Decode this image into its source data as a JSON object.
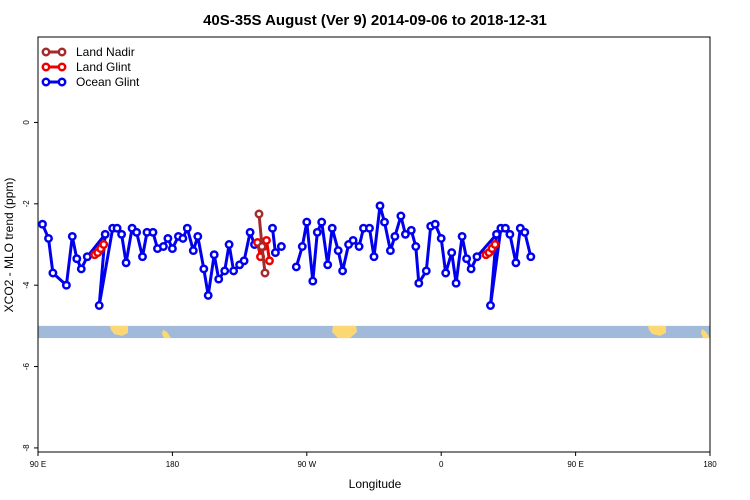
{
  "chart_data": {
    "type": "line",
    "title": "40S-35S August (Ver 9)   2014-09-06 to 2018-12-31",
    "xlabel": "Longitude",
    "ylabel": "XCO2 - MLO trend (ppm)",
    "xlim": [
      90,
      540
    ],
    "ylim": [
      -8.1,
      2.1
    ],
    "x_ticks": [
      {
        "value": 90,
        "label": "90 E"
      },
      {
        "value": 180,
        "label": "180"
      },
      {
        "value": 270,
        "label": "90 W"
      },
      {
        "value": 360,
        "label": "0"
      },
      {
        "value": 450,
        "label": "90 E"
      },
      {
        "value": 540,
        "label": "180"
      }
    ],
    "y_ticks": [
      {
        "value": 0,
        "label": "0"
      },
      {
        "value": -2,
        "label": "-2"
      },
      {
        "value": -4,
        "label": "-4"
      },
      {
        "value": -6,
        "label": "-6"
      },
      {
        "value": -8,
        "label": "-8"
      }
    ],
    "legend_position": "top-left",
    "series": [
      {
        "name": "Ocean Glint",
        "color": "#0000ee",
        "segments": [
          [
            [
              93,
              -2.5
            ],
            [
              97,
              -2.85
            ],
            [
              100,
              -3.7
            ],
            [
              109,
              -4.0
            ],
            [
              113,
              -2.8
            ],
            [
              116,
              -3.35
            ],
            [
              119,
              -3.6
            ],
            [
              123,
              -3.3
            ],
            [
              135,
              -2.75
            ],
            [
              131,
              -4.5
            ],
            [
              140,
              -2.6
            ],
            [
              143,
              -2.6
            ],
            [
              146,
              -2.75
            ],
            [
              149,
              -3.45
            ],
            [
              153,
              -2.6
            ],
            [
              156,
              -2.7
            ],
            [
              160,
              -3.3
            ],
            [
              163,
              -2.7
            ],
            [
              167,
              -2.7
            ],
            [
              170,
              -3.1
            ],
            [
              174,
              -3.05
            ],
            [
              177,
              -2.85
            ],
            [
              180,
              -3.1
            ],
            [
              184,
              -2.8
            ],
            [
              187,
              -2.85
            ],
            [
              190,
              -2.6
            ],
            [
              194,
              -3.15
            ],
            [
              197,
              -2.8
            ],
            [
              201,
              -3.6
            ],
            [
              204,
              -4.25
            ],
            [
              208,
              -3.25
            ],
            [
              211,
              -3.85
            ],
            [
              215,
              -3.65
            ],
            [
              218,
              -3.0
            ],
            [
              221,
              -3.65
            ],
            [
              225,
              -3.5
            ],
            [
              228,
              -3.4
            ],
            [
              232,
              -2.7
            ],
            [
              235,
              -3.0
            ]
          ],
          [
            [
              247,
              -2.6
            ],
            [
              249,
              -3.2
            ],
            [
              253,
              -3.05
            ]
          ],
          [
            [
              263,
              -3.55
            ],
            [
              267,
              -3.05
            ],
            [
              270,
              -2.45
            ],
            [
              274,
              -3.9
            ],
            [
              277,
              -2.7
            ],
            [
              280,
              -2.45
            ],
            [
              284,
              -3.5
            ],
            [
              287,
              -2.6
            ],
            [
              291,
              -3.15
            ],
            [
              294,
              -3.65
            ],
            [
              298,
              -3.0
            ],
            [
              301,
              -2.9
            ],
            [
              305,
              -3.05
            ],
            [
              308,
              -2.6
            ],
            [
              312,
              -2.6
            ],
            [
              315,
              -3.3
            ],
            [
              319,
              -2.05
            ],
            [
              322,
              -2.45
            ],
            [
              326,
              -3.15
            ],
            [
              329,
              -2.8
            ],
            [
              333,
              -2.3
            ],
            [
              336,
              -2.75
            ],
            [
              340,
              -2.65
            ],
            [
              343,
              -3.05
            ],
            [
              345,
              -3.95
            ],
            [
              350,
              -3.65
            ],
            [
              353,
              -2.55
            ],
            [
              356,
              -2.5
            ],
            [
              360,
              -2.85
            ],
            [
              363,
              -3.7
            ],
            [
              367,
              -3.2
            ],
            [
              370,
              -3.95
            ],
            [
              374,
              -2.8
            ],
            [
              377,
              -3.35
            ],
            [
              380,
              -3.6
            ],
            [
              384,
              -3.3
            ],
            [
              397,
              -2.75
            ],
            [
              393,
              -4.5
            ],
            [
              400,
              -2.6
            ],
            [
              403,
              -2.6
            ],
            [
              406,
              -2.75
            ],
            [
              410,
              -3.45
            ],
            [
              413,
              -2.6
            ],
            [
              416,
              -2.7
            ],
            [
              420,
              -3.3
            ]
          ]
        ]
      },
      {
        "name": "Land Glint",
        "color": "#ee0000",
        "segments": [
          [
            [
              128,
              -3.25
            ],
            [
              130,
              -3.2
            ],
            [
              132,
              -3.1
            ],
            [
              134,
              -3.0
            ]
          ],
          [
            [
              237,
              -2.95
            ],
            [
              239,
              -3.3
            ],
            [
              241,
              -3.05
            ],
            [
              243,
              -2.9
            ],
            [
              245,
              -3.4
            ]
          ],
          [
            [
              390,
              -3.25
            ],
            [
              392,
              -3.2
            ],
            [
              394,
              -3.1
            ],
            [
              396,
              -3.0
            ]
          ]
        ]
      },
      {
        "name": "Land Nadir",
        "color": "#a52a2a",
        "segments": [
          [
            [
              238,
              -2.25
            ],
            [
              240,
              -3.05
            ],
            [
              242,
              -3.7
            ]
          ]
        ]
      }
    ],
    "map_strip": {
      "y_top": -5.0,
      "y_bottom": -5.3,
      "ocean_color": "#a2bad9",
      "land_color": "#fcd874"
    }
  }
}
